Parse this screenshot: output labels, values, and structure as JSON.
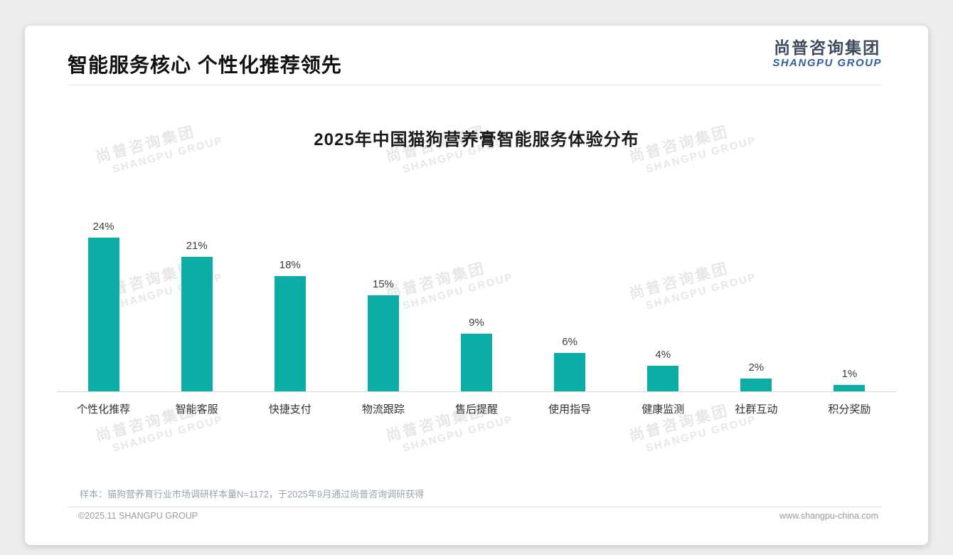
{
  "page": {
    "title": "智能服务核心 个性化推荐领先",
    "logo": {
      "cn": "尚普咨询集团",
      "en": "SHANGPU GROUP"
    },
    "watermark": {
      "cn": "尚普咨询集团",
      "en": "SHANGPU GROUP"
    },
    "note": "样本：猫狗营养育行业市场调研样本量N=1172，于2025年9月通过尚普咨询调研获得",
    "footer": {
      "left": "©2025.11 SHANGPU GROUP",
      "right": "www.shangpu-china.com"
    }
  },
  "chart_data": {
    "type": "bar",
    "title": "2025年中国猫狗营养膏智能服务体验分布",
    "categories": [
      "个性化推荐",
      "智能客服",
      "快捷支付",
      "物流跟踪",
      "售后提醒",
      "使用指导",
      "健康监测",
      "社群互动",
      "积分奖励"
    ],
    "values": [
      24,
      21,
      18,
      15,
      9,
      6,
      4,
      2,
      1
    ],
    "value_labels": [
      "24%",
      "21%",
      "18%",
      "15%",
      "9%",
      "6%",
      "4%",
      "2%",
      "1%"
    ],
    "unit": "%",
    "bar_color": "#0cada4",
    "ylim": [
      0,
      26
    ],
    "grid": false,
    "legend": false,
    "value_labels_position": "above-bar"
  }
}
